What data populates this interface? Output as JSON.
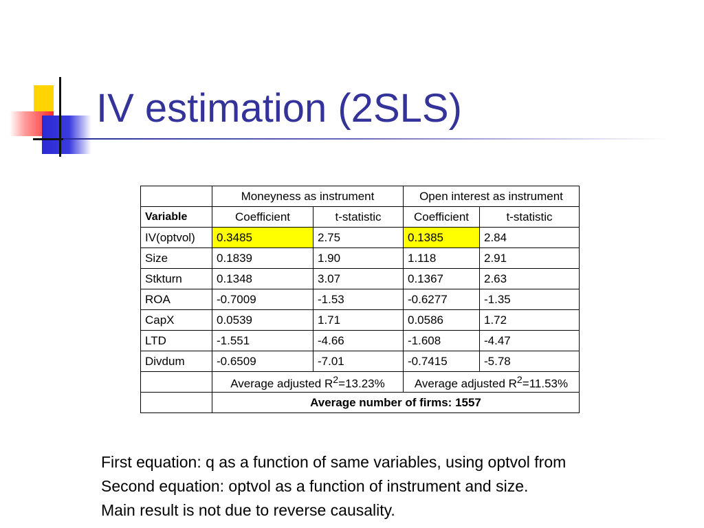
{
  "slide": {
    "title": "IV estimation (2SLS)"
  },
  "table": {
    "group_headers": [
      "Moneyness as instrument",
      "Open interest as instrument"
    ],
    "variable_header": "Variable",
    "column_headers": [
      "Coefficient",
      "t-statistic",
      "Coefficient",
      "t-statistic"
    ],
    "rows": [
      {
        "variable": "IV(optvol)",
        "values": [
          "0.3485",
          "2.75",
          "0.1385",
          "2.84"
        ]
      },
      {
        "variable": "Size",
        "values": [
          "0.1839",
          "1.90",
          "1.118",
          "2.91"
        ]
      },
      {
        "variable": "Stkturn",
        "values": [
          "0.1348",
          "3.07",
          "0.1367",
          "2.63"
        ]
      },
      {
        "variable": "ROA",
        "values": [
          "-0.7009",
          "-1.53",
          "-0.6277",
          "-1.35"
        ]
      },
      {
        "variable": "CapX",
        "values": [
          "0.0539",
          "1.71",
          "0.0586",
          "1.72"
        ]
      },
      {
        "variable": "LTD",
        "values": [
          "-1.551",
          "-4.66",
          "-1.608",
          "-4.47"
        ]
      },
      {
        "variable": "Divdum",
        "values": [
          "-0.6509",
          "-7.01",
          "-0.7415",
          "-5.78"
        ]
      }
    ],
    "r2": [
      {
        "prefix": "Average adjusted R",
        "sup": "2",
        "suffix": "=13.23%"
      },
      {
        "prefix": "Average adjusted R",
        "sup": "2",
        "suffix": "=11.53%"
      }
    ],
    "firms_note": "Average number of firms: 1557",
    "highlight_color": "#ffff00"
  },
  "notes": [
    "First equation: q as a function of same variables, using optvol from",
    "Second equation: optvol as a function of instrument and size.",
    "Main result is not due to reverse causality."
  ],
  "colors": {
    "title": "#333399",
    "accent_yellow": "#ffd400",
    "accent_red": "#ff2a2a",
    "accent_blue": "#2b2bd6"
  }
}
